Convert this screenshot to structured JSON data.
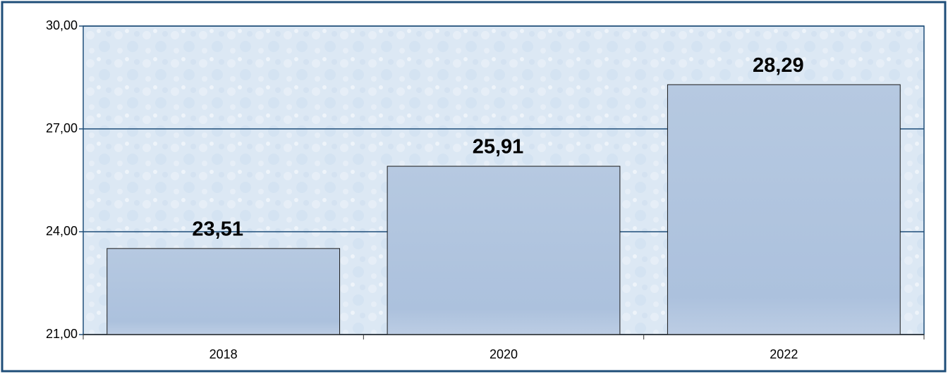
{
  "chart_data": {
    "type": "bar",
    "categories": [
      "2018",
      "2020",
      "2022"
    ],
    "values": [
      23.51,
      25.91,
      28.29
    ],
    "value_labels": [
      "23,51",
      "25,91",
      "28,29"
    ],
    "color": "#b3c6df",
    "ylim": [
      21,
      30
    ],
    "yticks": [
      {
        "value": 21,
        "label": "21,00"
      },
      {
        "value": 24,
        "label": "24,00"
      },
      {
        "value": 27,
        "label": "27,00"
      },
      {
        "value": 30,
        "label": "30,00"
      }
    ],
    "grid": true
  }
}
